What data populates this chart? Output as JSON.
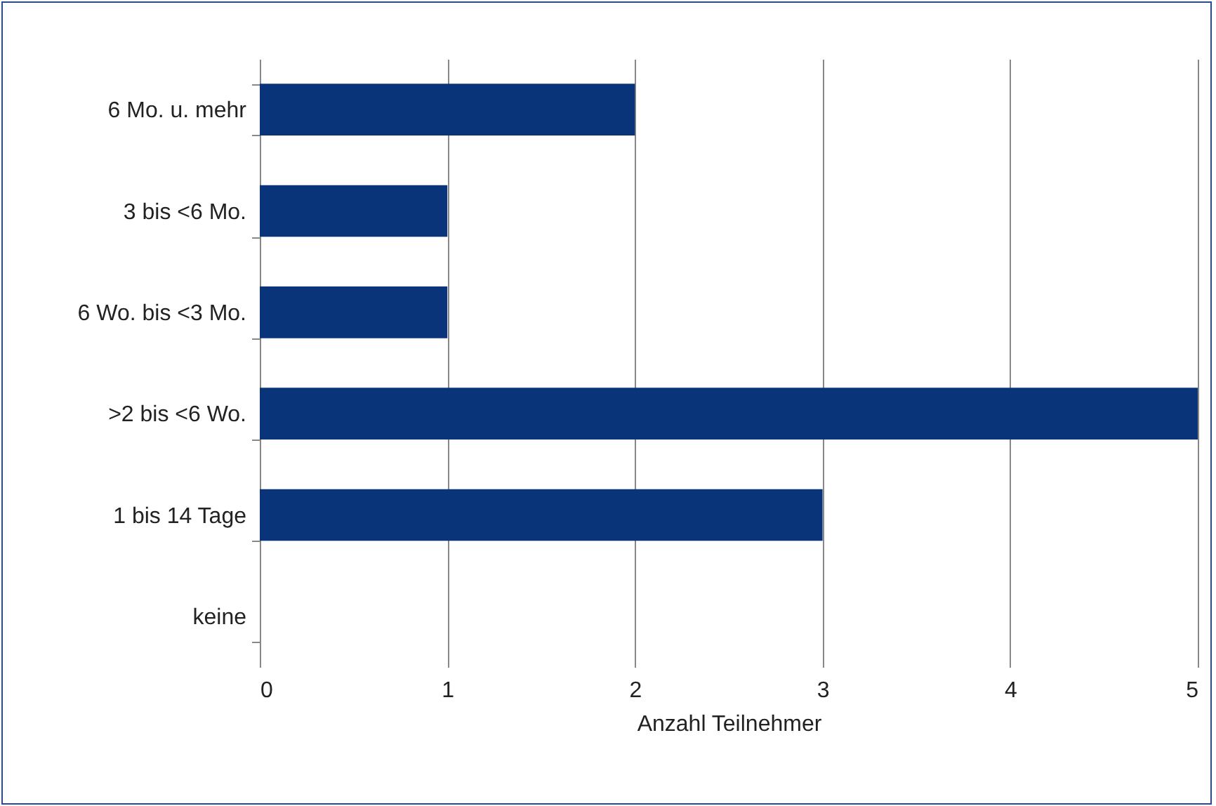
{
  "chart_data": {
    "type": "bar",
    "orientation": "horizontal",
    "xlabel": "Anzahl Teilnehmer",
    "categories": [
      "6 Mo. u. mehr",
      "3 bis <6 Mo.",
      "6 Wo. bis <3 Mo.",
      ">2 bis <6 Wo.",
      "1 bis 14 Tage",
      "keine"
    ],
    "values": [
      2,
      1,
      1,
      5,
      3,
      0
    ],
    "color": "#0a3479",
    "xlim": [
      0,
      5
    ],
    "xticks": [
      0,
      1,
      2,
      3,
      4,
      5
    ],
    "grid": "x"
  }
}
